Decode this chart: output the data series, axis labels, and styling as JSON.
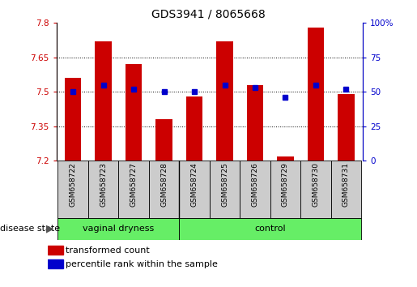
{
  "title": "GDS3941 / 8065668",
  "samples": [
    "GSM658722",
    "GSM658723",
    "GSM658727",
    "GSM658728",
    "GSM658724",
    "GSM658725",
    "GSM658726",
    "GSM658729",
    "GSM658730",
    "GSM658731"
  ],
  "transformed_count": [
    7.56,
    7.72,
    7.62,
    7.38,
    7.48,
    7.72,
    7.53,
    7.22,
    7.78,
    7.49
  ],
  "percentile_rank": [
    50,
    55,
    52,
    50,
    50,
    55,
    53,
    46,
    55,
    52
  ],
  "ylim_left": [
    7.2,
    7.8
  ],
  "ylim_right": [
    0,
    100
  ],
  "yticks_left": [
    7.2,
    7.35,
    7.5,
    7.65,
    7.8
  ],
  "yticks_right": [
    0,
    25,
    50,
    75,
    100
  ],
  "ytick_labels_left": [
    "7.2",
    "7.35",
    "7.5",
    "7.65",
    "7.8"
  ],
  "ytick_labels_right": [
    "0",
    "25",
    "50",
    "75",
    "100%"
  ],
  "group_boundary": 4,
  "groups": [
    {
      "label": "vaginal dryness",
      "start": 0,
      "end": 4
    },
    {
      "label": "control",
      "start": 4,
      "end": 10
    }
  ],
  "bar_color": "#CC0000",
  "dot_color": "#0000CC",
  "group_color": "#66EE66",
  "sample_box_color": "#CCCCCC",
  "legend_items": [
    {
      "label": "transformed count",
      "color": "#CC0000"
    },
    {
      "label": "percentile rank within the sample",
      "color": "#0000CC"
    }
  ],
  "disease_state_label": "disease state",
  "left_axis_color": "#CC0000",
  "right_axis_color": "#0000CC"
}
